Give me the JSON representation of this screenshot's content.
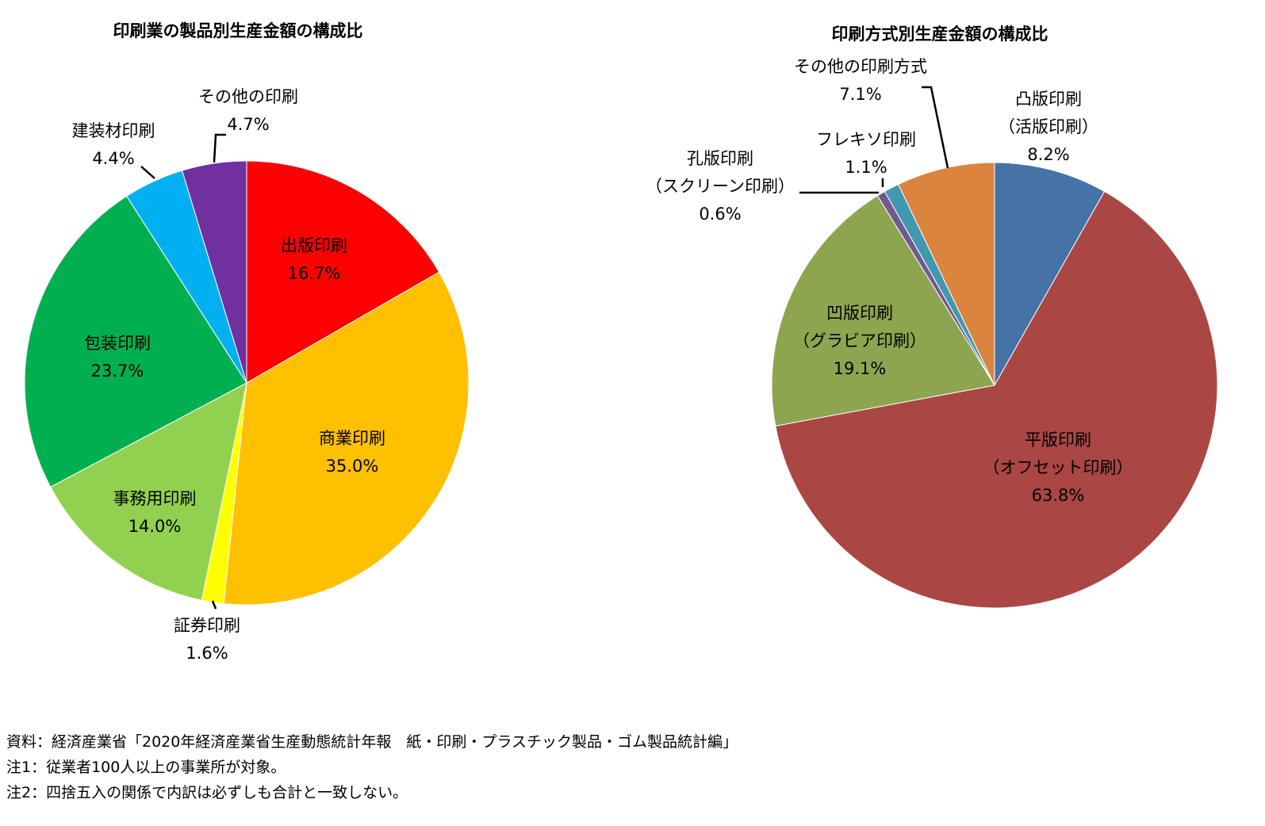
{
  "chart_data": [
    {
      "type": "pie",
      "title": "印刷業の製品別生産金額の構成比",
      "unit": "%",
      "slices": [
        {
          "label": "出版印刷",
          "value": 16.7,
          "value_label": "16.7%",
          "color": "#FF0000"
        },
        {
          "label": "商業印刷",
          "value": 35.0,
          "value_label": "35.0%",
          "color": "#FFC000"
        },
        {
          "label": "証券印刷",
          "value": 1.6,
          "value_label": "1.6%",
          "color": "#FFFF00"
        },
        {
          "label": "事務用印刷",
          "value": 14.0,
          "value_label": "14.0%",
          "color": "#92D050"
        },
        {
          "label": "包装印刷",
          "value": 23.7,
          "value_label": "23.7%",
          "color": "#00B050"
        },
        {
          "label": "建装材印刷",
          "value": 4.4,
          "value_label": "4.4%",
          "color": "#00B0F0"
        },
        {
          "label": "その他の印刷",
          "value": 4.7,
          "value_label": "4.7%",
          "color": "#7030A0"
        }
      ]
    },
    {
      "type": "pie",
      "title": "印刷方式別生産金額の構成比",
      "unit": "%",
      "slices": [
        {
          "label": "凸版印刷\n（活版印刷）",
          "value": 8.2,
          "value_label": "8.2%",
          "color": "#4572A7"
        },
        {
          "label": "平版印刷\n（オフセット印刷）",
          "value": 63.8,
          "value_label": "63.8%",
          "color": "#AA4643"
        },
        {
          "label": "凹版印刷\n（グラビア印刷）",
          "value": 19.1,
          "value_label": "19.1%",
          "color": "#8DA54F"
        },
        {
          "label": "孔版印刷\n（スクリーン印刷）",
          "value": 0.6,
          "value_label": "0.6%",
          "color": "#71588F"
        },
        {
          "label": "フレキソ印刷",
          "value": 1.1,
          "value_label": "1.1%",
          "color": "#4198AF"
        },
        {
          "label": "その他の印刷方式",
          "value": 7.1,
          "value_label": "7.1%",
          "color": "#DB843D"
        }
      ]
    }
  ],
  "notes": [
    "資料：経済産業省「2020年経済産業省生産動態統計年報　紙・印刷・プラスチック製品・ゴム製品統計編」",
    "注1：従業者100人以上の事業所が対象。",
    "注2：四捨五入の関係で内訳は必ずしも合計と一致しない。"
  ]
}
